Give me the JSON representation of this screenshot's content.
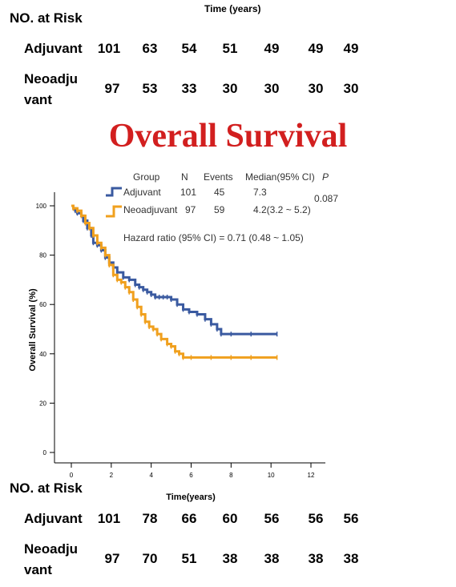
{
  "top_header_text": "Time (years)",
  "top_table": {
    "title": "NO. at Risk",
    "rows": [
      {
        "label_lines": [
          "Adjuvant"
        ],
        "values": [
          "101",
          "63",
          "54",
          "51",
          "49",
          "49",
          "49"
        ]
      },
      {
        "label_lines": [
          "Neoadju",
          "vant"
        ],
        "values": [
          "97",
          "53",
          "33",
          "30",
          "30",
          "30",
          "30"
        ]
      }
    ]
  },
  "main_title": "Overall Survival",
  "bottom_table": {
    "title": "NO. at Risk",
    "rows": [
      {
        "label_lines": [
          "Adjuvant"
        ],
        "values": [
          "101",
          "78",
          "66",
          "60",
          "56",
          "56",
          "56"
        ]
      },
      {
        "label_lines": [
          "Neoadju",
          "vant"
        ],
        "values": [
          "97",
          "70",
          "51",
          "38",
          "38",
          "38",
          "38"
        ]
      }
    ]
  },
  "legend_table": {
    "headers": [
      "Group",
      "N",
      "Events",
      "Median(95% CI)",
      "P"
    ],
    "rows": [
      {
        "group": "Adjuvant",
        "n": "101",
        "events": "45",
        "median": "7.3",
        "color": "#3a5aa0"
      },
      {
        "group": "Neoadjuvant",
        "n": "97",
        "events": "59",
        "median": "4.2(3.2 ~ 5.2)",
        "color": "#f0a01e"
      }
    ],
    "p_value": "0.087",
    "hazard_ratio": "Hazard ratio (95% CI) = 0.71 (0.48 ~ 1.05)"
  },
  "chart_data": {
    "type": "line",
    "subtype": "kaplan-meier step",
    "xlabel": "Time(years)",
    "ylabel": "Overall Survival (%)",
    "xlim": [
      0,
      12
    ],
    "ylim": [
      0,
      100
    ],
    "x_ticks": [
      0,
      2,
      4,
      6,
      8,
      10,
      12
    ],
    "y_ticks": [
      0,
      20,
      40,
      60,
      80,
      100
    ],
    "grid": false,
    "series": [
      {
        "name": "Adjuvant",
        "color": "#3a5aa0",
        "x": [
          0,
          0.1,
          0.2,
          0.3,
          0.5,
          0.6,
          0.8,
          1.0,
          1.1,
          1.3,
          1.5,
          1.7,
          1.9,
          2.1,
          2.3,
          2.6,
          2.9,
          3.2,
          3.4,
          3.6,
          3.8,
          4.0,
          4.2,
          4.4,
          4.6,
          4.8,
          5.0,
          5.3,
          5.6,
          5.9,
          6.3,
          6.7,
          7.0,
          7.3,
          7.5,
          8.0,
          9.0,
          10.3
        ],
        "y": [
          100,
          99,
          98,
          97,
          96,
          94,
          91,
          88,
          85,
          84,
          82,
          79,
          77,
          75,
          73,
          71,
          70,
          68,
          67,
          66,
          65,
          64,
          63,
          63,
          63,
          63,
          62,
          60,
          58,
          57,
          56,
          54,
          52,
          50,
          48,
          48,
          48,
          48
        ]
      },
      {
        "name": "Neoadjuvant",
        "color": "#f0a01e",
        "x": [
          0,
          0.1,
          0.3,
          0.5,
          0.7,
          0.9,
          1.1,
          1.3,
          1.5,
          1.7,
          1.9,
          2.1,
          2.3,
          2.5,
          2.7,
          2.9,
          3.1,
          3.3,
          3.5,
          3.7,
          3.9,
          4.1,
          4.3,
          4.5,
          4.8,
          5.0,
          5.2,
          5.4,
          5.6,
          6.0,
          7.0,
          8.0,
          9.0,
          10.3
        ],
        "y": [
          100,
          99,
          98,
          96,
          93,
          91,
          88,
          85,
          83,
          80,
          76,
          72,
          70,
          69,
          67,
          65,
          62,
          59,
          56,
          53,
          51,
          50,
          48,
          46,
          44,
          43,
          41,
          40,
          38.5,
          38.5,
          38.5,
          38.5,
          38.5,
          38.5
        ]
      }
    ]
  }
}
